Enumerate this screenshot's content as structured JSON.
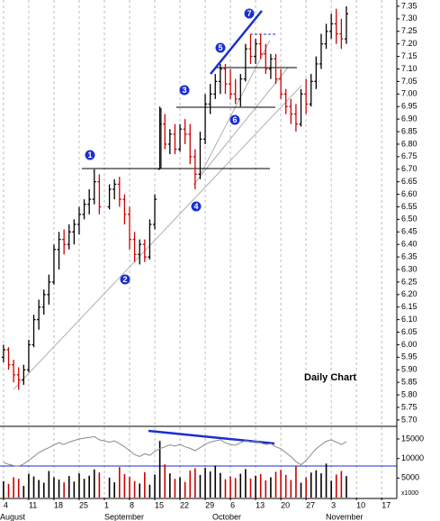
{
  "chart_data": {
    "type": "ohlc",
    "annotation": "Daily Chart",
    "x": [
      0,
      1,
      2,
      3,
      4,
      5,
      6,
      7,
      8,
      9,
      10,
      11,
      12,
      13,
      14,
      15,
      16,
      17,
      18,
      19,
      21,
      22,
      23,
      24,
      25,
      26,
      27,
      28,
      29,
      30,
      31,
      32,
      33,
      34,
      35,
      36,
      37,
      38,
      39,
      40,
      41,
      42,
      43,
      44,
      45,
      46,
      47,
      48,
      49,
      50,
      51,
      52,
      53,
      54,
      55,
      56,
      57,
      58,
      59,
      60,
      61,
      62,
      63,
      64,
      65,
      66,
      67,
      68
    ],
    "open": [
      5.95,
      5.98,
      5.92,
      5.88,
      5.86,
      5.9,
      6.0,
      6.1,
      6.15,
      6.2,
      6.25,
      6.38,
      6.42,
      6.4,
      6.45,
      6.48,
      6.52,
      6.56,
      6.58,
      6.65,
      6.55,
      6.62,
      6.64,
      6.58,
      6.52,
      6.42,
      6.36,
      6.4,
      6.35,
      6.48,
      6.7,
      6.88,
      6.8,
      6.84,
      6.78,
      6.86,
      6.84,
      6.75,
      6.68,
      6.82,
      6.96,
      7.0,
      7.05,
      7.1,
      7.04,
      7.0,
      6.98,
      7.06,
      7.18,
      7.15,
      7.2,
      7.16,
      7.1,
      7.14,
      7.06,
      7.0,
      6.95,
      6.92,
      6.88,
      7.0,
      6.96,
      7.05,
      7.12,
      7.2,
      7.25,
      7.28,
      7.24,
      7.22
    ],
    "high": [
      6.0,
      5.99,
      5.94,
      5.91,
      5.92,
      6.02,
      6.12,
      6.18,
      6.22,
      6.28,
      6.4,
      6.45,
      6.46,
      6.48,
      6.5,
      6.55,
      6.58,
      6.62,
      6.7,
      6.68,
      6.64,
      6.66,
      6.67,
      6.6,
      6.55,
      6.45,
      6.42,
      6.42,
      6.5,
      6.6,
      6.95,
      6.92,
      6.86,
      6.88,
      6.88,
      6.9,
      6.88,
      6.78,
      6.85,
      7.0,
      7.04,
      7.08,
      7.12,
      7.12,
      7.1,
      7.06,
      7.08,
      7.2,
      7.24,
      7.22,
      7.24,
      7.2,
      7.16,
      7.16,
      7.1,
      7.02,
      6.98,
      6.96,
      7.02,
      7.06,
      7.08,
      7.15,
      7.24,
      7.28,
      7.32,
      7.34,
      7.3,
      7.35
    ],
    "low": [
      5.93,
      5.9,
      5.85,
      5.82,
      5.84,
      5.89,
      5.99,
      6.06,
      6.12,
      6.16,
      6.24,
      6.3,
      6.36,
      6.38,
      6.4,
      6.44,
      6.5,
      6.52,
      6.56,
      6.52,
      6.54,
      6.58,
      6.55,
      6.48,
      6.38,
      6.33,
      6.32,
      6.33,
      6.34,
      6.46,
      6.7,
      6.78,
      6.76,
      6.76,
      6.77,
      6.8,
      6.72,
      6.62,
      6.66,
      6.8,
      6.92,
      6.98,
      7.0,
      7.0,
      6.98,
      6.96,
      6.95,
      7.05,
      7.12,
      7.12,
      7.14,
      7.08,
      7.06,
      7.04,
      6.98,
      6.92,
      6.88,
      6.85,
      6.87,
      6.92,
      6.95,
      7.02,
      7.1,
      7.18,
      7.22,
      7.2,
      7.18,
      7.2
    ],
    "close": [
      5.98,
      5.92,
      5.88,
      5.86,
      5.9,
      6.0,
      6.1,
      6.15,
      6.2,
      6.25,
      6.38,
      6.42,
      6.4,
      6.45,
      6.48,
      6.52,
      6.56,
      6.58,
      6.65,
      6.55,
      6.62,
      6.64,
      6.58,
      6.52,
      6.42,
      6.36,
      6.4,
      6.35,
      6.48,
      6.58,
      6.88,
      6.8,
      6.84,
      6.78,
      6.86,
      6.84,
      6.75,
      6.68,
      6.82,
      6.96,
      7.0,
      7.05,
      7.1,
      7.04,
      7.0,
      6.98,
      7.06,
      7.18,
      7.15,
      7.2,
      7.16,
      7.1,
      7.14,
      7.06,
      7.0,
      6.95,
      6.92,
      6.88,
      7.0,
      6.96,
      7.05,
      7.12,
      7.2,
      7.25,
      7.28,
      7.24,
      7.22,
      7.32
    ],
    "up_color": "#000000",
    "down_color": "#cc0000",
    "xlim": [
      -0.7,
      78
    ],
    "xticks": [
      {
        "value": 0,
        "label": "4"
      },
      {
        "value": 5,
        "label": "11"
      },
      {
        "value": 10,
        "label": "18"
      },
      {
        "value": 15,
        "label": "25"
      },
      {
        "value": 20,
        "label": "1"
      },
      {
        "value": 25,
        "label": "8"
      },
      {
        "value": 30,
        "label": "15"
      },
      {
        "value": 35,
        "label": "22"
      },
      {
        "value": 40,
        "label": "29"
      },
      {
        "value": 45,
        "label": "6"
      },
      {
        "value": 50,
        "label": "13"
      },
      {
        "value": 55,
        "label": "20"
      },
      {
        "value": 60,
        "label": "27"
      },
      {
        "value": 65,
        "label": "3"
      },
      {
        "value": 70,
        "label": "10"
      },
      {
        "value": 75,
        "label": "17"
      }
    ],
    "ylim": [
      5.678,
      7.375
    ],
    "yticks": [
      7.35,
      {
        "value": 7.3,
        "label": "7.30"
      },
      7.25,
      {
        "value": 7.2,
        "label": "7.20"
      },
      7.15,
      {
        "value": 7.1,
        "label": "7.10"
      },
      7.05,
      {
        "value": 7,
        "label": "7.00"
      },
      6.95,
      {
        "value": 6.9,
        "label": "6.90"
      },
      6.85,
      {
        "value": 6.8,
        "label": "6.80"
      },
      6.75,
      {
        "value": 6.7,
        "label": "6.70"
      },
      6.65,
      {
        "value": 6.6,
        "label": "6.60"
      },
      6.55,
      {
        "value": 6.5,
        "label": "6.50"
      },
      6.45,
      {
        "value": 6.4,
        "label": "6.40"
      },
      6.35,
      {
        "value": 6.3,
        "label": "6.30"
      },
      6.25,
      {
        "value": 6.2,
        "label": "6.20"
      },
      6.15,
      {
        "value": 6.1,
        "label": "6.10"
      },
      6.05,
      {
        "value": 6,
        "label": "6.00"
      },
      5.95,
      {
        "value": 5.9,
        "label": "5.90"
      },
      5.85,
      {
        "value": 5.8,
        "label": "5.80"
      },
      5.75,
      {
        "value": 5.7,
        "label": "5.70"
      }
    ],
    "grid": true,
    "months": [
      "August",
      "September",
      "October",
      "November"
    ],
    "markers": [
      "1",
      "2",
      "3",
      "4",
      "5",
      "6",
      "7"
    ],
    "volume": {
      "values": [
        4200,
        3500,
        5200,
        4800,
        3000,
        6100,
        5400,
        4500,
        3800,
        6800,
        5200,
        4600,
        3900,
        5500,
        4100,
        6200,
        4800,
        5600,
        7200,
        6400,
        5100,
        3900,
        7800,
        6000,
        5300,
        4200,
        3600,
        6500,
        3300,
        5900,
        14500,
        8500,
        6200,
        4800,
        5200,
        4000,
        6900,
        7500,
        5800,
        7600,
        6700,
        8200,
        6300,
        4700,
        5400,
        5000,
        6100,
        7300,
        4900,
        5600,
        6000,
        4400,
        5200,
        6600,
        7100,
        5800,
        4500,
        8100,
        3800,
        5200,
        6400,
        7000,
        6200,
        8700,
        4300,
        5900,
        6800,
        5500
      ],
      "ylim": [
        0,
        18000
      ],
      "yticks": [
        5000,
        10000,
        15000
      ],
      "unit": "x1000",
      "oscillator": {
        "color": "#8a8a8a",
        "values": [
          9000,
          8500,
          8200,
          8000,
          8600,
          9500,
          10500,
          11500,
          12200,
          12800,
          13500,
          14000,
          13600,
          14200,
          14600,
          15000,
          15200,
          15400,
          15600,
          14800,
          14200,
          14500,
          13800,
          13000,
          12000,
          11000,
          10500,
          11200,
          10800,
          11800,
          12500,
          13000,
          13500,
          13200,
          13600,
          13000,
          12600,
          12000,
          12800,
          13600,
          14200,
          14500,
          14800,
          14000,
          13600,
          13400,
          14000,
          14600,
          14200,
          14500,
          14000,
          13600,
          13800,
          13000,
          12500,
          11500,
          10500,
          9200,
          8400,
          9500,
          11000,
          12500,
          13500,
          14400,
          14800,
          14200,
          13600,
          14300
        ]
      }
    }
  }
}
